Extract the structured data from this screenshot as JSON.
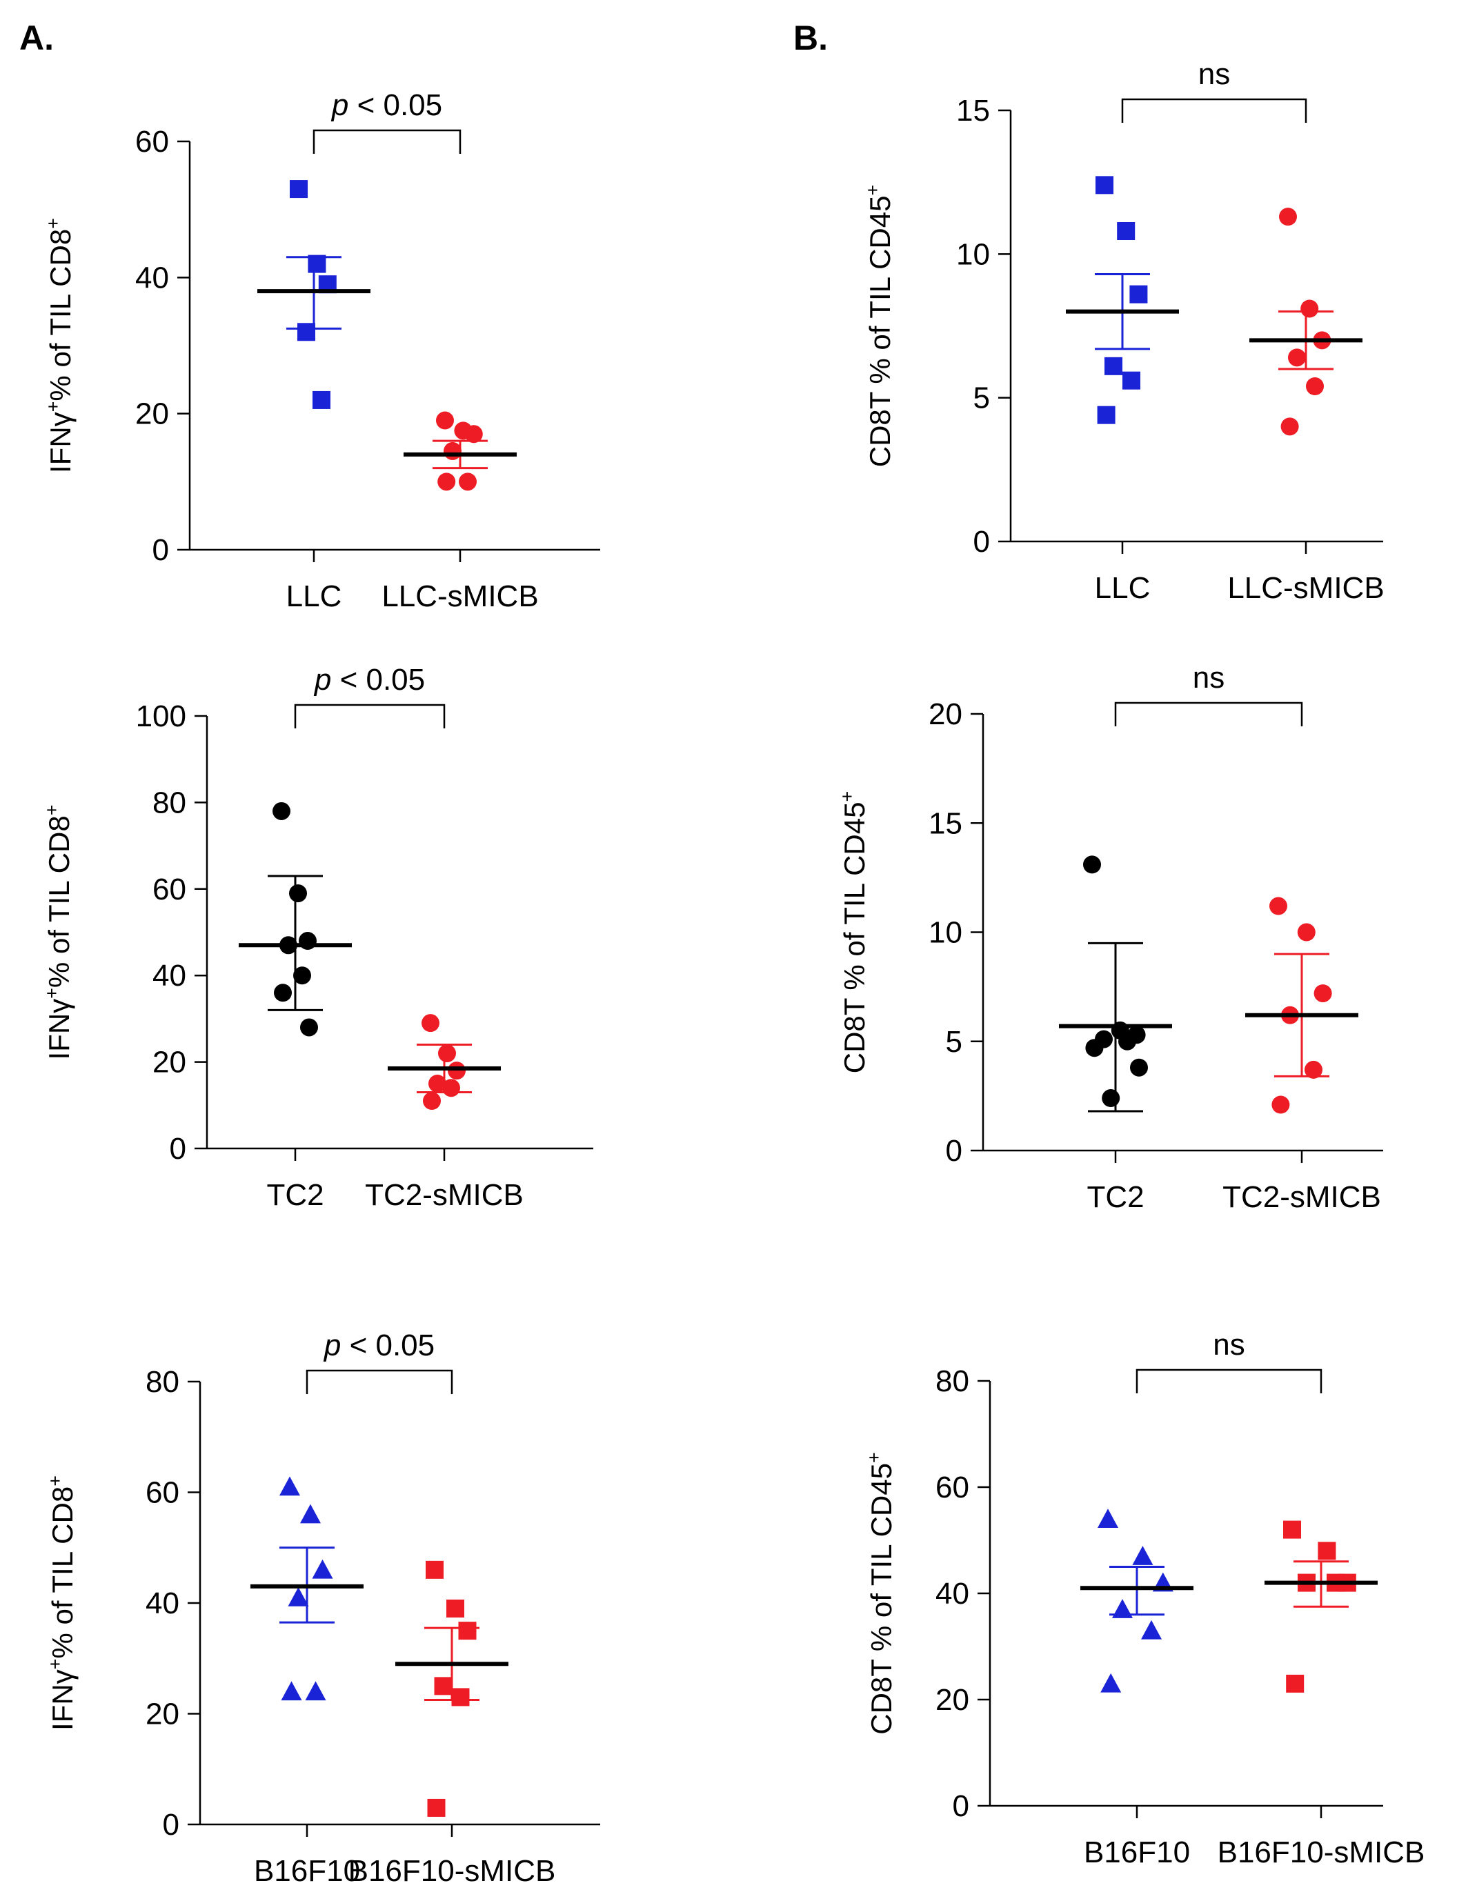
{
  "panel_labels": {
    "A": "A.",
    "B": "B."
  },
  "colors": {
    "blue": "#1a23d6",
    "red": "#ee1c24",
    "black": "#000000",
    "axis": "#000000"
  },
  "chart_data": [
    {
      "id": "A1",
      "type": "scatter",
      "column": "A",
      "ylabel": {
        "main": "IFNγ",
        "sup1": "+",
        "rest": "% of TIL CD8",
        "sup2": "+"
      },
      "ylim": [
        0,
        60
      ],
      "yticks": [
        0,
        20,
        40,
        60
      ],
      "categories": [
        "LLC",
        "LLC-sMICB"
      ],
      "significance": {
        "prefix": "p",
        "rest": " < 0.05"
      },
      "series": [
        {
          "name": "LLC",
          "marker": "square",
          "color": "#1a23d6",
          "points": [
            53,
            42,
            39,
            32,
            22
          ],
          "mean": 38,
          "err_low": 32.5,
          "err_high": 43
        },
        {
          "name": "LLC-sMICB",
          "marker": "circle",
          "color": "#ee1c24",
          "points": [
            19,
            17.5,
            17,
            14.5,
            10,
            10
          ],
          "mean": 14,
          "err_low": 12,
          "err_high": 16
        }
      ]
    },
    {
      "id": "B1",
      "type": "scatter",
      "column": "B",
      "ylabel": {
        "main": "CD8T % of TIL CD45",
        "sup1": "",
        "rest": "",
        "sup2": "+"
      },
      "ylim": [
        0,
        15
      ],
      "yticks": [
        0,
        5,
        10,
        15
      ],
      "categories": [
        "LLC",
        "LLC-sMICB"
      ],
      "significance": {
        "prefix": "",
        "rest": "ns"
      },
      "series": [
        {
          "name": "LLC",
          "marker": "square",
          "color": "#1a23d6",
          "points": [
            12.4,
            10.8,
            8.6,
            6.1,
            5.6,
            4.4
          ],
          "mean": 8.0,
          "err_low": 6.7,
          "err_high": 9.3
        },
        {
          "name": "LLC-sMICB",
          "marker": "circle",
          "color": "#ee1c24",
          "points": [
            11.3,
            8.1,
            7.0,
            6.4,
            5.4,
            4.0
          ],
          "mean": 7.0,
          "err_low": 6.0,
          "err_high": 8.0
        }
      ]
    },
    {
      "id": "A2",
      "type": "scatter",
      "column": "A",
      "ylabel": {
        "main": "IFNγ",
        "sup1": "+",
        "rest": "% of TIL CD8",
        "sup2": "+"
      },
      "ylim": [
        0,
        100
      ],
      "yticks": [
        0,
        20,
        40,
        60,
        80,
        100
      ],
      "categories": [
        "TC2",
        "TC2-sMICB"
      ],
      "significance": {
        "prefix": "p",
        "rest": " < 0.05"
      },
      "series": [
        {
          "name": "TC2",
          "marker": "circle",
          "color": "#000000",
          "points": [
            78,
            59,
            48,
            47,
            40,
            36,
            28
          ],
          "mean": 47,
          "err_low": 32,
          "err_high": 63
        },
        {
          "name": "TC2-sMICB",
          "marker": "circle",
          "color": "#ee1c24",
          "points": [
            29,
            22,
            18,
            15,
            14,
            11
          ],
          "mean": 18.5,
          "err_low": 13,
          "err_high": 24
        }
      ]
    },
    {
      "id": "B2",
      "type": "scatter",
      "column": "B",
      "ylabel": {
        "main": "CD8T % of TIL CD45",
        "sup1": "",
        "rest": "",
        "sup2": "+"
      },
      "ylim": [
        0,
        20
      ],
      "yticks": [
        0,
        5,
        10,
        15,
        20
      ],
      "categories": [
        "TC2",
        "TC2-sMICB"
      ],
      "significance": {
        "prefix": "",
        "rest": "ns"
      },
      "series": [
        {
          "name": "TC2",
          "marker": "circle",
          "color": "#000000",
          "points": [
            13.1,
            5.5,
            5.3,
            5.1,
            5.0,
            4.7,
            3.8,
            2.4
          ],
          "mean": 5.7,
          "err_low": 1.8,
          "err_high": 9.5
        },
        {
          "name": "TC2-sMICB",
          "marker": "circle",
          "color": "#ee1c24",
          "points": [
            11.2,
            10.0,
            7.2,
            6.2,
            3.7,
            2.1
          ],
          "mean": 6.2,
          "err_low": 3.4,
          "err_high": 9.0
        }
      ]
    },
    {
      "id": "A3",
      "type": "scatter",
      "column": "A",
      "ylabel": {
        "main": "IFNγ",
        "sup1": "+",
        "rest": "% of TIL CD8",
        "sup2": "+"
      },
      "ylim": [
        0,
        80
      ],
      "yticks": [
        0,
        20,
        40,
        60,
        80
      ],
      "categories": [
        "B16F10",
        "B16F10-sMICB"
      ],
      "significance": {
        "prefix": "p",
        "rest": " < 0.05"
      },
      "series": [
        {
          "name": "B16F10",
          "marker": "triangle",
          "color": "#1a23d6",
          "points": [
            61,
            56,
            46,
            41,
            24,
            24
          ],
          "mean": 43,
          "err_low": 36.5,
          "err_high": 50
        },
        {
          "name": "B16F10-sMICB",
          "marker": "square",
          "color": "#ee1c24",
          "points": [
            46,
            39,
            35,
            25,
            23,
            3
          ],
          "mean": 29,
          "err_low": 22.5,
          "err_high": 35.5
        }
      ]
    },
    {
      "id": "B3",
      "type": "scatter",
      "column": "B",
      "ylabel": {
        "main": "CD8T % of TIL CD45",
        "sup1": "",
        "rest": "",
        "sup2": "+"
      },
      "ylim": [
        0,
        80
      ],
      "yticks": [
        0,
        20,
        40,
        60,
        80
      ],
      "categories": [
        "B16F10",
        "B16F10-sMICB"
      ],
      "significance": {
        "prefix": "",
        "rest": "ns"
      },
      "series": [
        {
          "name": "B16F10",
          "marker": "triangle",
          "color": "#1a23d6",
          "points": [
            54,
            47,
            42,
            37,
            33,
            23
          ],
          "mean": 41,
          "err_low": 36,
          "err_high": 45
        },
        {
          "name": "B16F10-sMICB",
          "marker": "square",
          "color": "#ee1c24",
          "points": [
            52,
            48,
            42,
            42,
            42,
            23
          ],
          "mean": 42,
          "err_low": 37.5,
          "err_high": 46
        }
      ]
    }
  ]
}
